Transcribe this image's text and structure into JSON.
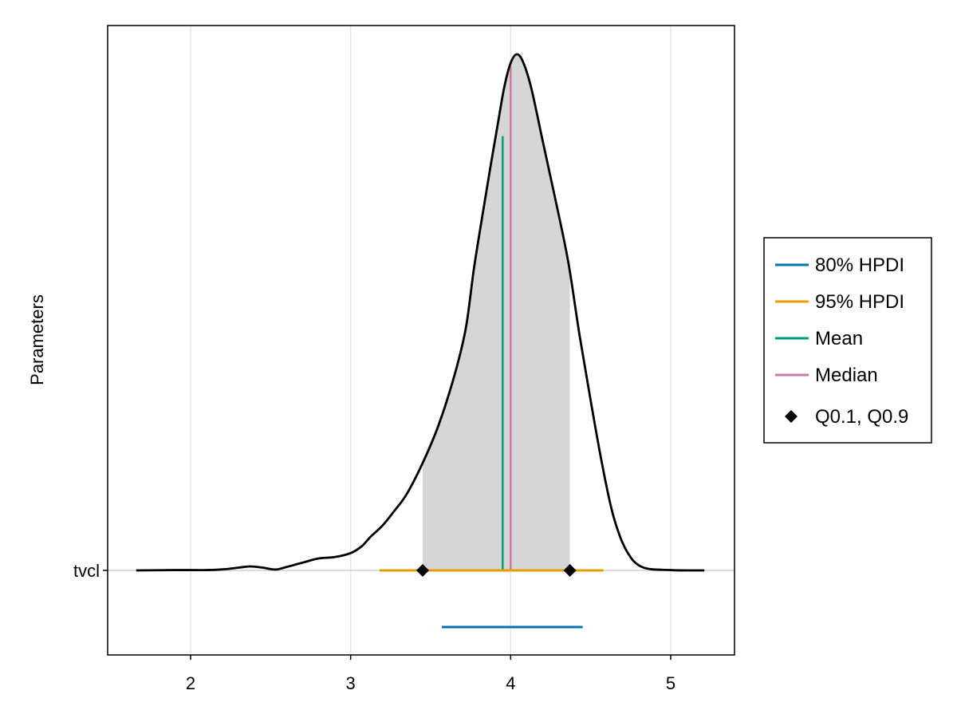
{
  "chart_data": {
    "type": "density",
    "title": "",
    "xlabel": "",
    "ylabel": "Parameters",
    "xlim": [
      1.48,
      5.4
    ],
    "x_ticks": [
      2,
      3,
      4,
      5
    ],
    "y_ticks": [
      "tvcl"
    ],
    "grid": true,
    "legend_position": "right",
    "parameter": "tvcl",
    "density_curve": {
      "x": [
        1.66,
        1.9,
        2.1,
        2.2,
        2.3,
        2.37,
        2.45,
        2.53,
        2.6,
        2.7,
        2.8,
        2.9,
        3.0,
        3.07,
        3.12,
        3.2,
        3.27,
        3.35,
        3.45,
        3.55,
        3.65,
        3.72,
        3.77,
        3.82,
        3.87,
        3.92,
        3.96,
        4.0,
        4.04,
        4.08,
        4.13,
        4.2,
        4.28,
        4.36,
        4.43,
        4.5,
        4.57,
        4.64,
        4.72,
        4.82,
        5.0,
        5.21
      ],
      "y": [
        0.0,
        0.002,
        0.002,
        0.006,
        0.016,
        0.023,
        0.016,
        0.005,
        0.02,
        0.045,
        0.069,
        0.077,
        0.1,
        0.14,
        0.19,
        0.26,
        0.34,
        0.44,
        0.62,
        0.84,
        1.13,
        1.4,
        1.74,
        2.03,
        2.31,
        2.58,
        2.79,
        2.93,
        2.98,
        2.93,
        2.78,
        2.48,
        2.14,
        1.78,
        1.36,
        0.98,
        0.62,
        0.32,
        0.12,
        0.02,
        0.002,
        0.0
      ]
    },
    "shaded_region": {
      "from": 3.45,
      "to": 4.37,
      "label": "Q0.1, Q0.9"
    },
    "mean": 3.95,
    "median": 4.0,
    "quantiles": [
      3.45,
      4.37
    ],
    "hpdi_80": [
      3.57,
      4.45
    ],
    "hpdi_95": [
      3.18,
      4.58
    ],
    "legend": [
      {
        "label": "80% HPDI",
        "color": "#0072b2",
        "marker": "line"
      },
      {
        "label": "95% HPDI",
        "color": "#e69f00",
        "marker": "line"
      },
      {
        "label": "Mean",
        "color": "#009e73",
        "marker": "line"
      },
      {
        "label": "Median",
        "color": "#cc79a7",
        "marker": "line"
      },
      {
        "label": "Q0.1, Q0.9",
        "color": "#000000",
        "marker": "diamond"
      }
    ],
    "colors": {
      "hpdi_80": "#0072b2",
      "hpdi_95": "#e69f00",
      "mean": "#009e73",
      "median": "#cc79a7",
      "density": "#000000",
      "shade": "#d6d6d6",
      "grid": "#e5e5e5"
    }
  }
}
